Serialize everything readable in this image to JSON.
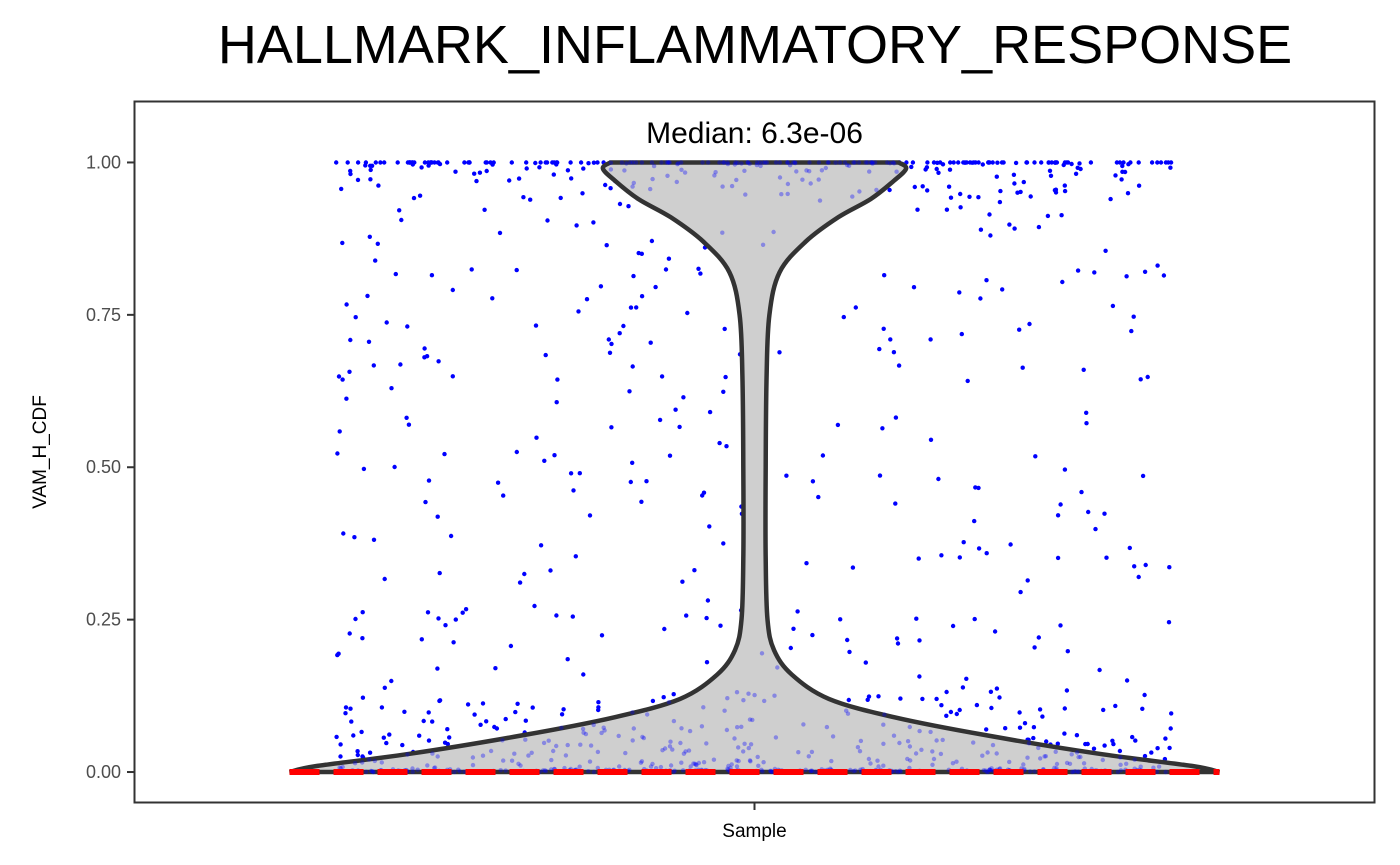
{
  "chart_data": {
    "type": "violin",
    "title": "HALLMARK_INFLAMMATORY_RESPONSE",
    "xlabel": "Sample",
    "ylabel": "VAM_H_CDF",
    "x_category": "Sample",
    "ylim": [
      -0.05,
      1.1
    ],
    "yticks": [
      "0.00",
      "0.25",
      "0.50",
      "0.75",
      "1.00"
    ],
    "ytick_values": [
      0,
      0.25,
      0.5,
      0.75,
      1.0
    ],
    "annotation": "Median: 6.3e-06",
    "median": 6.3e-06,
    "grid": false,
    "colors": {
      "violin_fill": "#cccccc",
      "violin_outline": "#333333",
      "points": "#0000ff",
      "median_line": "#ff0000"
    },
    "density_profile": [
      {
        "y": 0.0,
        "half_width": 0.5
      },
      {
        "y": 0.01,
        "half_width": 0.47
      },
      {
        "y": 0.03,
        "half_width": 0.37
      },
      {
        "y": 0.06,
        "half_width": 0.25
      },
      {
        "y": 0.09,
        "half_width": 0.15
      },
      {
        "y": 0.12,
        "half_width": 0.08
      },
      {
        "y": 0.16,
        "half_width": 0.04
      },
      {
        "y": 0.2,
        "half_width": 0.021
      },
      {
        "y": 0.25,
        "half_width": 0.014
      },
      {
        "y": 0.35,
        "half_width": 0.012
      },
      {
        "y": 0.5,
        "half_width": 0.012
      },
      {
        "y": 0.65,
        "half_width": 0.013
      },
      {
        "y": 0.75,
        "half_width": 0.016
      },
      {
        "y": 0.82,
        "half_width": 0.027
      },
      {
        "y": 0.87,
        "half_width": 0.055
      },
      {
        "y": 0.91,
        "half_width": 0.09
      },
      {
        "y": 0.94,
        "half_width": 0.125
      },
      {
        "y": 0.97,
        "half_width": 0.15
      },
      {
        "y": 0.99,
        "half_width": 0.163
      },
      {
        "y": 1.0,
        "half_width": 0.155
      }
    ],
    "points": {
      "y_distribution": "dense near 0.00, sparse 0.10-0.95, dense near 1.00",
      "jitter_width": 0.45
    }
  }
}
